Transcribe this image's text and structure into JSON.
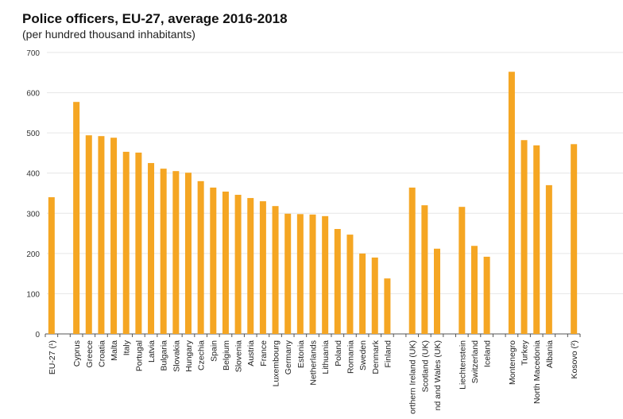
{
  "chart_data": {
    "type": "bar",
    "title": "Police officers, EU-27, average 2016-2018",
    "subtitle": "(per hundred thousand inhabitants)",
    "xlabel": "",
    "ylabel": "",
    "ylim": [
      0,
      700
    ],
    "yticks": [
      0,
      100,
      200,
      300,
      400,
      500,
      600,
      700
    ],
    "grid": true,
    "bar_color": "#f5a623",
    "categories": [
      "EU-27 (¹)",
      "Cyprus",
      "Greece",
      "Croatia",
      "Malta",
      "Italy",
      "Portugal",
      "Latvia",
      "Bulgaria",
      "Slovakia",
      "Hungary",
      "Czechia",
      "Spain",
      "Belgium",
      "Slovenia",
      "Austria",
      "France",
      "Luxembourg",
      "Germany",
      "Estonia",
      "Netherlands",
      "Lithuania",
      "Poland",
      "Romania",
      "Sweden",
      "Denmark",
      "Finland",
      "orthern Ireland (UK)",
      "Scotland (UK)",
      "nd and Wales (UK)",
      "Liechtenstein",
      "Switzerland",
      "Iceland",
      "Montenegro",
      "Turkey",
      "North Macedonia",
      "Albania",
      "Kosovo (²)"
    ],
    "values": [
      340,
      577,
      494,
      492,
      488,
      453,
      451,
      425,
      411,
      405,
      401,
      380,
      364,
      354,
      346,
      338,
      330,
      318,
      299,
      298,
      297,
      293,
      261,
      247,
      200,
      190,
      138,
      364,
      320,
      212,
      316,
      219,
      192,
      652,
      482,
      469,
      370,
      472
    ]
  }
}
